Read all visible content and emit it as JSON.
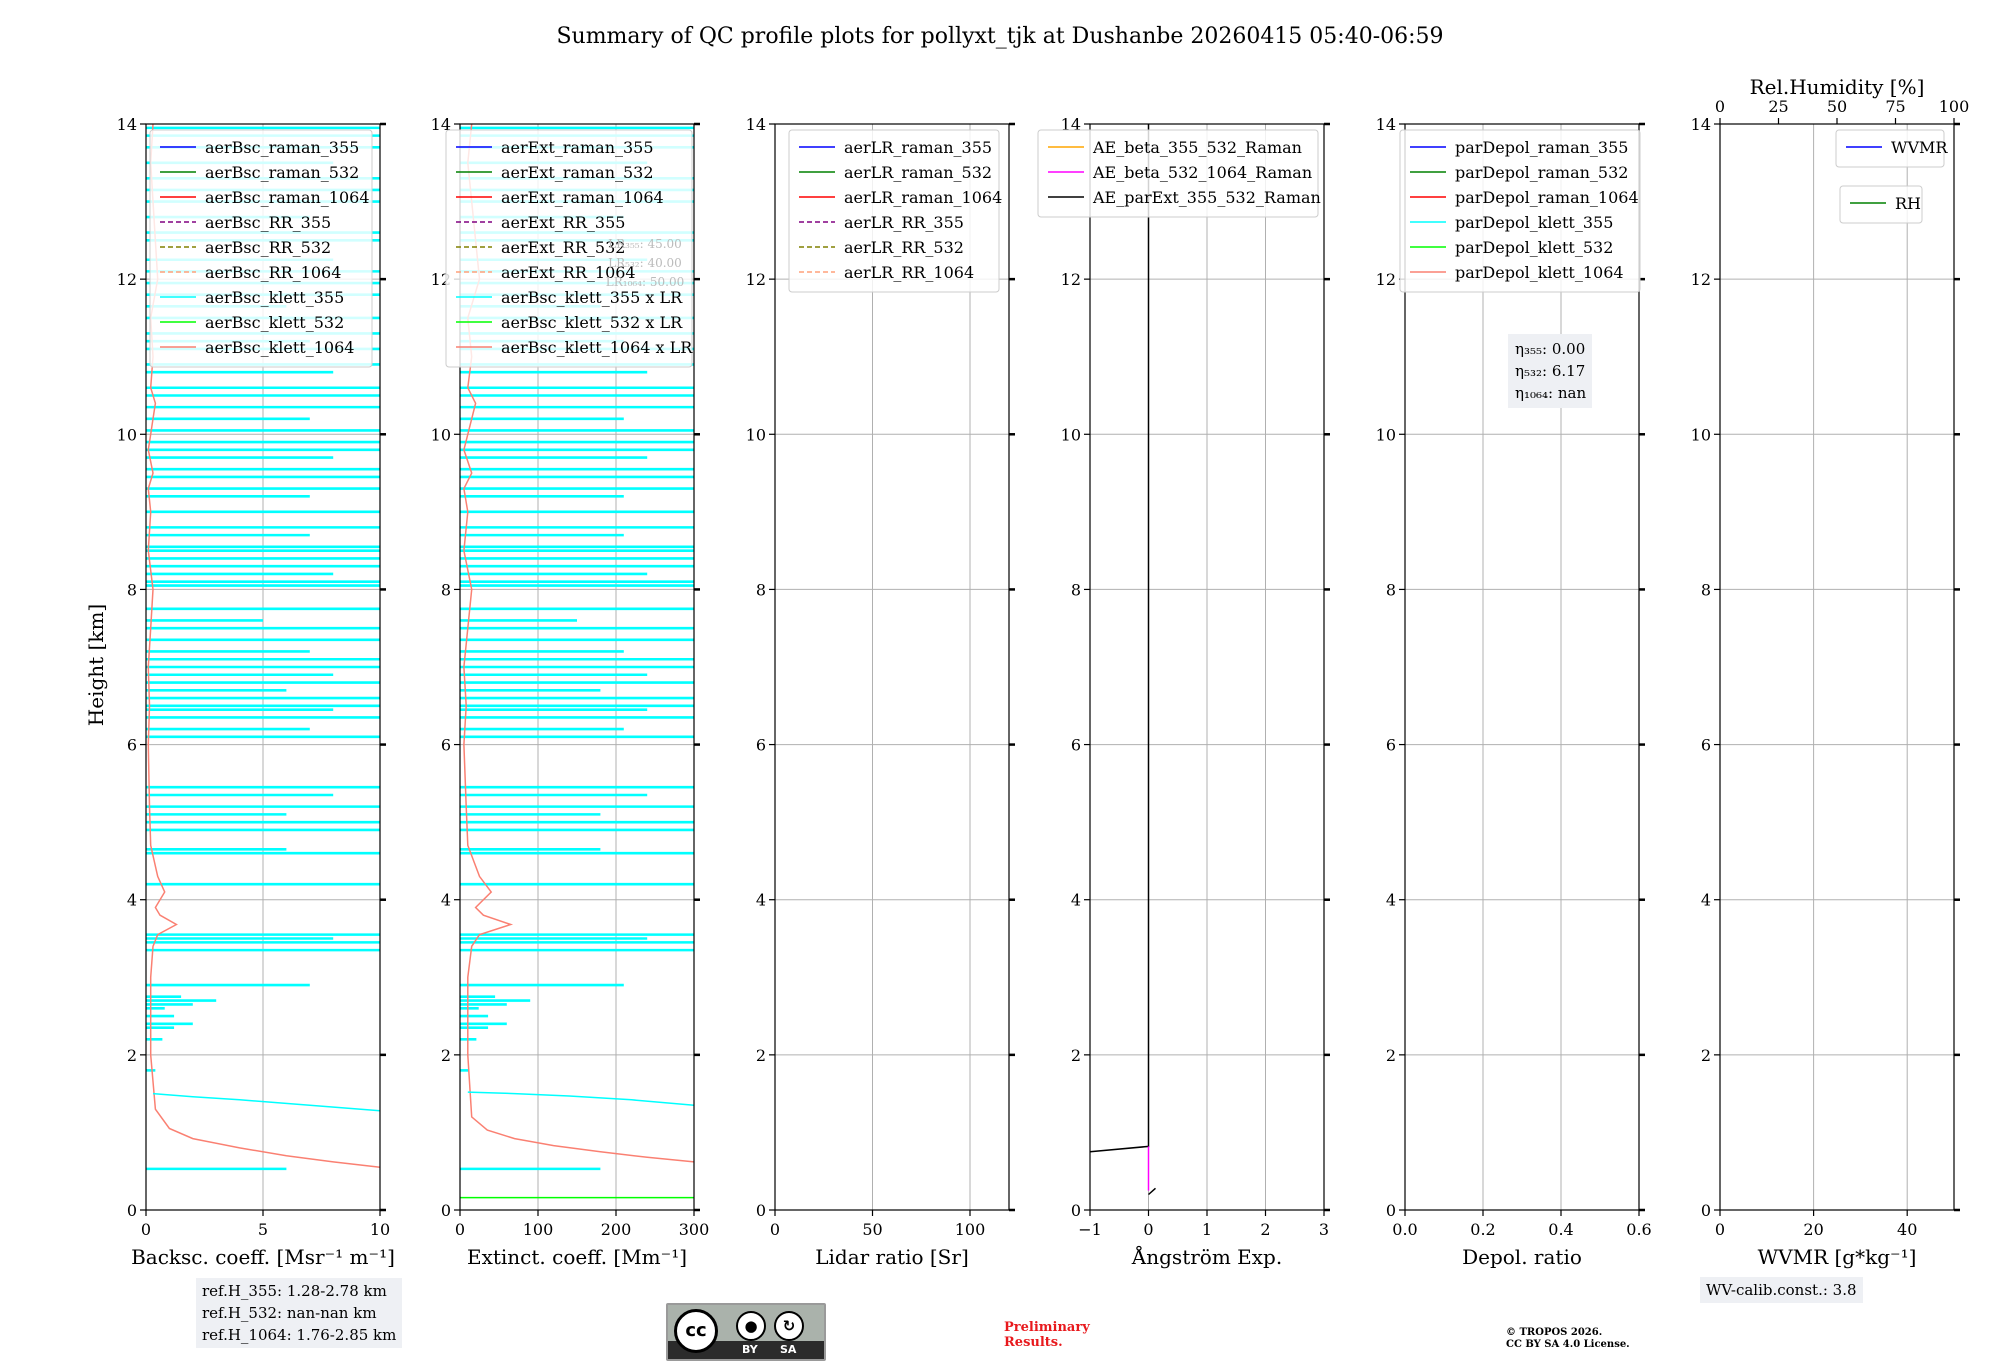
{
  "title": "Summary of QC profile plots for pollyxt_tjk at Dushanbe 20260415 05:40-06:59",
  "y_axis_label": "Height [km]",
  "ref_heights": [
    "ref.H_355: 1.28-2.78 km",
    "ref.H_532: nan-nan km",
    "ref.H_1064: 1.76-2.85 km"
  ],
  "wv_calib": "WV-calib.const.: 3.8",
  "license_badge": {
    "cc": "cc",
    "by": "BY",
    "sa": "SA"
  },
  "preliminary": [
    "Preliminary",
    "Results."
  ],
  "copyright": [
    "© TROPOS 2026.",
    "CC BY SA 4.0 License."
  ],
  "colors": {
    "raman355": "#0000ff",
    "raman532": "#008000",
    "raman1064": "#ff0000",
    "rr355": "#800080",
    "rr532": "#808000",
    "rr1064": "#ffa07a",
    "klett355": "#00ffff",
    "klett532": "#00ff00",
    "klett1064": "#fa8072",
    "ae1": "#ffa500",
    "ae2": "#ff00ff",
    "ae3": "#000000",
    "grid": "#b0b0b0"
  },
  "chart_data": [
    {
      "id": "backscatter",
      "type": "line",
      "xlabel": "Backsc. coeff. [Msr⁻¹ m⁻¹]",
      "ylabel": "Height [km]",
      "xlim": [
        0,
        10
      ],
      "ylim": [
        0,
        14
      ],
      "xticks": [
        0,
        5,
        10
      ],
      "yticks": [
        0,
        2,
        4,
        6,
        8,
        10,
        12,
        14
      ],
      "legend": [
        "aerBsc_raman_355",
        "aerBsc_raman_532",
        "aerBsc_raman_1064",
        "aerBsc_RR_355",
        "aerBsc_RR_532",
        "aerBsc_RR_1064",
        "aerBsc_klett_355",
        "aerBsc_klett_532",
        "aerBsc_klett_1064"
      ],
      "series": [
        {
          "name": "aerBsc_klett_1064",
          "x": [
            10,
            8,
            6,
            4,
            2,
            1,
            0.4,
            0.2,
            0.2,
            0.3,
            0.5,
            1.3,
            0.6,
            0.4,
            0.8,
            0.5,
            0.2,
            0.15,
            0.1,
            0.15,
            0.1,
            0.2,
            0.3,
            0.1,
            0.2,
            0.1,
            0.3,
            0.1,
            0.2,
            0.3,
            0.4,
            0.2,
            0.3,
            0.2,
            0.5,
            0.3,
            0.2,
            0.3
          ],
          "y": [
            0.55,
            0.62,
            0.7,
            0.8,
            0.92,
            1.05,
            1.3,
            2.0,
            3.0,
            3.4,
            3.55,
            3.68,
            3.8,
            3.9,
            4.1,
            4.3,
            4.7,
            5.2,
            6.0,
            6.5,
            7.0,
            7.5,
            8.0,
            8.5,
            9.0,
            9.3,
            9.5,
            9.8,
            10.0,
            10.2,
            10.4,
            10.6,
            11.0,
            11.5,
            12.0,
            13.0,
            13.5,
            14.0
          ]
        },
        {
          "name": "aerBsc_klett_355",
          "x": [
            10,
            7,
            4,
            2,
            0.3
          ],
          "y": [
            1.28,
            1.35,
            1.42,
            1.46,
            1.5
          ]
        }
      ],
      "noise_series": "aerBsc_klett_355",
      "noise_layers_km": [
        0.53,
        1.8,
        2.2,
        2.35,
        2.4,
        2.5,
        2.6,
        2.65,
        2.7,
        2.75,
        2.9,
        3.35,
        3.45,
        3.5,
        3.55,
        4.2,
        4.6,
        4.65,
        4.9,
        5.0,
        5.1,
        5.2,
        5.35,
        5.45,
        6.1,
        6.2,
        6.35,
        6.45,
        6.5,
        6.6,
        6.7,
        6.8,
        6.9,
        7.0,
        7.1,
        7.2,
        7.35,
        7.5,
        7.6,
        7.75,
        8.05,
        8.1,
        8.2,
        8.3,
        8.4,
        8.5,
        8.55,
        8.7,
        8.8,
        9.0,
        9.2,
        9.3,
        9.45,
        9.55,
        9.7,
        9.8,
        9.9,
        10.05,
        10.2,
        10.35,
        10.5,
        10.6,
        10.8,
        10.9,
        11.1,
        11.2,
        11.3,
        11.5,
        11.65,
        11.8,
        11.95,
        12.1,
        12.25,
        12.5,
        12.6,
        12.8,
        13.0,
        13.15,
        13.3,
        13.5,
        13.7,
        13.85,
        13.95
      ],
      "noise_len_pct": [
        0.6,
        0.04,
        0.07,
        0.12,
        0.2,
        0.12,
        0.08,
        0.2,
        0.3,
        0.15,
        0.7,
        1.0,
        1.0,
        0.8,
        1.0,
        1.0,
        1.0,
        0.6,
        1.0,
        1.0,
        0.6,
        1.0,
        0.8,
        1.0,
        1.0,
        0.7,
        1.0,
        0.8,
        1.0,
        1.0,
        0.6,
        1.0,
        0.8,
        1.0,
        1.0,
        0.7,
        1.0,
        1.0,
        0.5,
        1.0,
        1.0,
        1.0,
        0.8,
        1.0,
        1.0,
        1.0,
        1.0,
        0.7,
        1.0,
        1.0,
        0.7,
        1.0,
        1.0,
        1.0,
        0.8,
        1.0,
        1.0,
        1.0,
        0.7,
        1.0,
        1.0,
        1.0,
        0.8,
        1.0,
        1.0,
        0.7,
        1.0,
        1.0,
        0.6,
        1.0,
        1.0,
        1.0,
        0.8,
        1.0,
        1.0,
        0.7,
        1.0,
        1.0,
        1.0,
        0.8,
        1.0,
        1.0,
        1.0
      ]
    },
    {
      "id": "extinction",
      "type": "line",
      "xlabel": "Extinct. coeff. [Mm⁻¹]",
      "xlim": [
        0,
        300
      ],
      "ylim": [
        0,
        14
      ],
      "xticks": [
        0,
        100,
        200,
        300
      ],
      "yticks": [
        0,
        2,
        4,
        6,
        8,
        10,
        12,
        14
      ],
      "legend": [
        "aerExt_raman_355",
        "aerExt_raman_532",
        "aerExt_raman_1064",
        "aerExt_RR_355",
        "aerExt_RR_532",
        "aerExt_RR_1064",
        "aerBsc_klett_355 x LR",
        "aerBsc_klett_532 x LR",
        "aerBsc_klett_1064 x LR"
      ],
      "lr_labels": [
        "LR₃₅₅: 45.00",
        "LR₅₃₂: 40.00",
        "LR₁₀₆₄: 50.00"
      ],
      "series": [
        {
          "name": "aerBsc_klett_1064 x LR",
          "x": [
            300,
            240,
            180,
            120,
            70,
            35,
            15,
            10,
            10,
            15,
            25,
            65,
            30,
            20,
            40,
            25,
            10,
            8,
            5,
            8,
            5,
            10,
            15,
            5,
            10,
            5,
            15,
            5,
            10,
            15,
            20,
            10,
            15,
            10,
            25,
            15,
            10,
            15
          ],
          "y": [
            0.62,
            0.68,
            0.75,
            0.83,
            0.92,
            1.03,
            1.2,
            2.0,
            3.0,
            3.4,
            3.55,
            3.68,
            3.8,
            3.9,
            4.1,
            4.3,
            4.7,
            5.2,
            6.0,
            6.5,
            7.0,
            7.5,
            8.0,
            8.5,
            9.0,
            9.3,
            9.5,
            9.8,
            10.0,
            10.2,
            10.4,
            10.6,
            11.0,
            11.5,
            12.0,
            13.0,
            13.5,
            14.0
          ]
        },
        {
          "name": "aerBsc_klett_355 x LR",
          "x": [
            300,
            220,
            140,
            70,
            10
          ],
          "y": [
            1.35,
            1.42,
            1.47,
            1.5,
            1.52
          ]
        },
        {
          "name": "aerBsc_klett_532 x LR",
          "x": [
            0,
            300
          ],
          "y": [
            0.16,
            0.16
          ]
        }
      ],
      "noise_series": "aerBsc_klett_355 x LR"
    },
    {
      "id": "lidar_ratio",
      "type": "line",
      "xlabel": "Lidar ratio [Sr]",
      "xlim": [
        0,
        120
      ],
      "ylim": [
        0,
        14
      ],
      "xticks": [
        0,
        50,
        100
      ],
      "yticks": [
        0,
        2,
        4,
        6,
        8,
        10,
        12,
        14
      ],
      "legend": [
        "aerLR_raman_355",
        "aerLR_raman_532",
        "aerLR_raman_1064",
        "aerLR_RR_355",
        "aerLR_RR_532",
        "aerLR_RR_1064"
      ],
      "series": []
    },
    {
      "id": "angstrom",
      "type": "line",
      "xlabel": "Ångström Exp.",
      "xlim": [
        -1,
        3
      ],
      "ylim": [
        0,
        14
      ],
      "xticks": [
        -1,
        0,
        1,
        2,
        3
      ],
      "xticklabels": [
        "−1",
        "0",
        "1",
        "2",
        "3"
      ],
      "yticks": [
        0,
        2,
        4,
        6,
        8,
        10,
        12,
        14
      ],
      "legend": [
        "AE_beta_355_532_Raman",
        "AE_beta_532_1064_Raman",
        "AE_parExt_355_532_Raman"
      ],
      "series": [
        {
          "name": "AE_parExt_355_532_Raman",
          "x": [
            -1,
            0,
            0,
            0
          ],
          "y": [
            0.75,
            0.82,
            0.82,
            14
          ]
        },
        {
          "name": "AE_beta_532_1064_Raman",
          "x": [
            0,
            0
          ],
          "y": [
            0.25,
            0.82
          ]
        },
        {
          "name": "AE_parExt_355_532_Raman",
          "x": [
            0,
            0.12
          ],
          "y": [
            0.2,
            0.28
          ]
        }
      ]
    },
    {
      "id": "depol",
      "type": "line",
      "xlabel": "Depol. ratio",
      "xlim": [
        0,
        0.6
      ],
      "ylim": [
        0,
        14
      ],
      "xticks": [
        0,
        0.2,
        0.4,
        0.6
      ],
      "xticklabels": [
        "0.0",
        "0.2",
        "0.4",
        "0.6"
      ],
      "yticks": [
        0,
        2,
        4,
        6,
        8,
        10,
        12,
        14
      ],
      "legend": [
        "parDepol_raman_355",
        "parDepol_raman_532",
        "parDepol_raman_1064",
        "parDepol_klett_355",
        "parDepol_klett_532",
        "parDepol_klett_1064"
      ],
      "eta_labels": [
        "η₃₅₅: 0.00",
        "η₅₃₂: 6.17",
        "η₁₀₆₄: nan"
      ],
      "series": []
    },
    {
      "id": "water_vapor",
      "type": "line",
      "xlabel": "WVMR [g*kg⁻¹]",
      "xlim": [
        0,
        50
      ],
      "ylim": [
        0,
        14
      ],
      "xticks": [
        0,
        20,
        40
      ],
      "yticks": [
        0,
        2,
        4,
        6,
        8,
        10,
        12,
        14
      ],
      "top_xlabel": "Rel.Humidity [%]",
      "top_xlim": [
        0,
        100
      ],
      "top_xticks": [
        0,
        25,
        50,
        75,
        100
      ],
      "legend": [
        "WVMR"
      ],
      "legend2": [
        "RH"
      ],
      "series": []
    }
  ]
}
